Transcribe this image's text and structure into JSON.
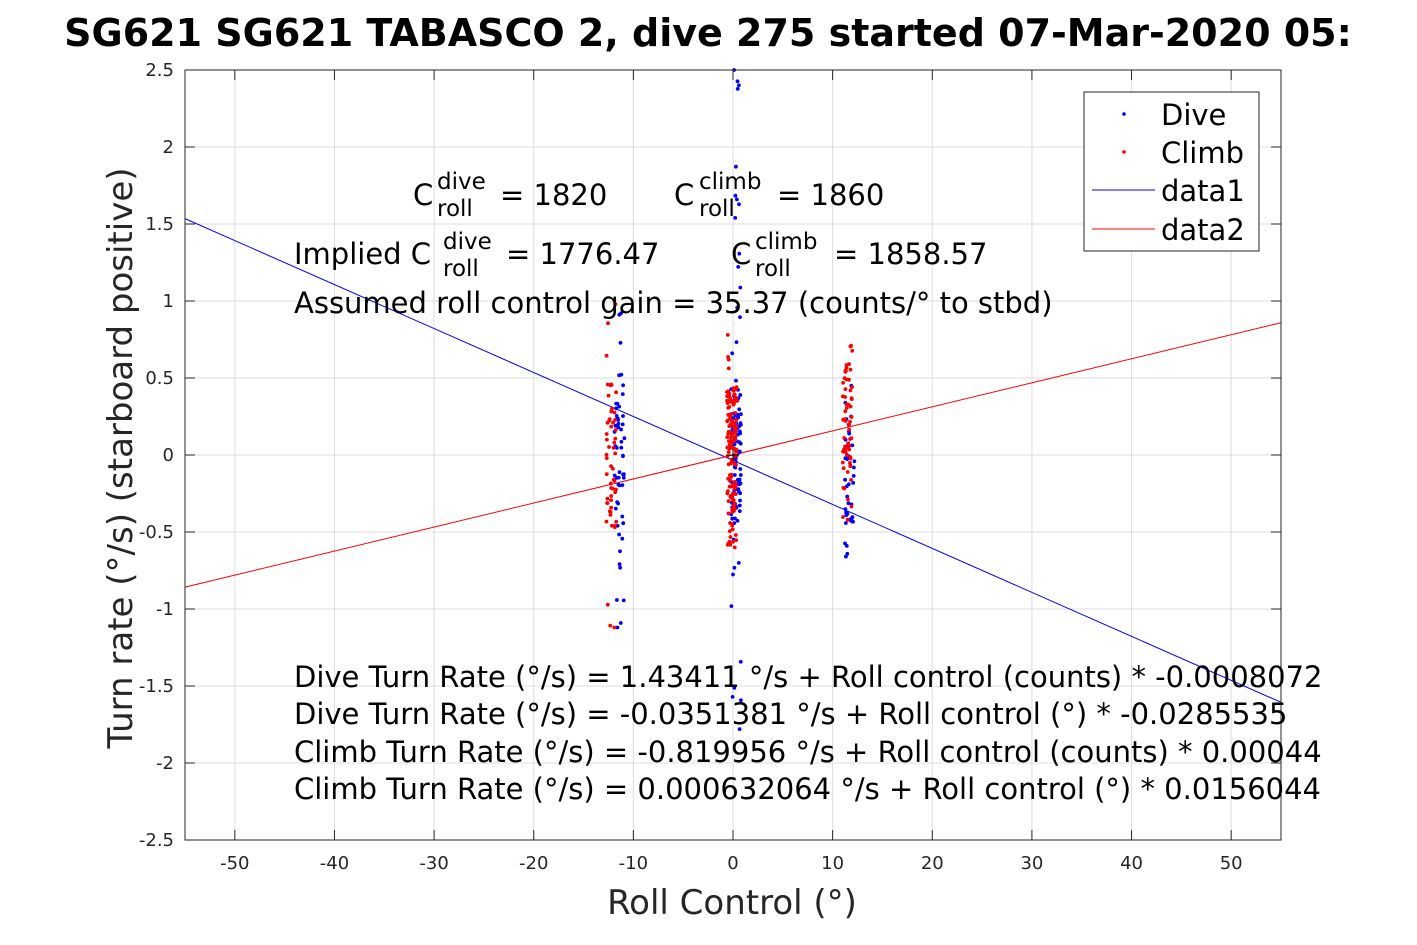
{
  "chart_data": {
    "type": "scatter",
    "title": "SG621 SG621 TABASCO 2, dive 275 started 07-Mar-2020 05:",
    "xlabel": "Roll Control (°)",
    "ylabel": "Turn rate (°/s) (starboard positive)",
    "xlim": [
      -55,
      55
    ],
    "ylim": [
      -2.5,
      2.5
    ],
    "xticks": [
      -50,
      -40,
      -30,
      -20,
      -10,
      0,
      10,
      20,
      30,
      40,
      50
    ],
    "yticks": [
      -2.5,
      -2,
      -1.5,
      -1,
      -0.5,
      0,
      0.5,
      1,
      1.5,
      2,
      2.5
    ],
    "grid": true,
    "legend_position": "top-right",
    "legend": [
      {
        "label": "Dive",
        "kind": "marker",
        "color": "#0000ff"
      },
      {
        "label": "Climb",
        "kind": "marker",
        "color": "#ff0000"
      },
      {
        "label": "data1",
        "kind": "line",
        "color": "#0000ff"
      },
      {
        "label": "data2",
        "kind": "line",
        "color": "#ff0000"
      }
    ],
    "series": [
      {
        "name": "Dive",
        "color": "#0000ff",
        "clusters": [
          {
            "x": -11.4,
            "y_min": -1.12,
            "y_max": 0.92,
            "dense_min": -0.65,
            "dense_max": 0.55,
            "count": 55
          },
          {
            "x": 0.3,
            "y_min": -1.78,
            "y_max": 2.5,
            "dense_min": -0.45,
            "dense_max": 0.45,
            "count": 110
          },
          {
            "x": 11.7,
            "y_min": -0.66,
            "y_max": 0.45,
            "dense_min": -0.45,
            "dense_max": 0.2,
            "count": 40
          }
        ]
      },
      {
        "name": "Climb",
        "color": "#ff0000",
        "clusters": [
          {
            "x": -12.2,
            "y_min": -1.12,
            "y_max": 0.98,
            "dense_min": -0.62,
            "dense_max": 0.5,
            "count": 55
          },
          {
            "x": -0.1,
            "y_min": -0.6,
            "y_max": 0.78,
            "dense_min": -0.45,
            "dense_max": 0.45,
            "count": 140
          },
          {
            "x": 11.5,
            "y_min": -0.42,
            "y_max": 0.71,
            "dense_min": -0.1,
            "dense_max": 0.6,
            "count": 60
          }
        ]
      },
      {
        "name": "data1",
        "color": "#0000ff",
        "line": {
          "x": [
            -55,
            55
          ],
          "y": [
            1.535,
            -1.606
          ]
        }
      },
      {
        "name": "data2",
        "color": "#ff0000",
        "line": {
          "x": [
            -55,
            55
          ],
          "y": [
            -0.858,
            0.859
          ]
        }
      }
    ],
    "annotations": {
      "c_roll": {
        "dive_base": "C",
        "dive_sup": "dive",
        "dive_sub": "roll",
        "dive_value": "= 1820",
        "climb_base": "C",
        "climb_sup": "climb",
        "climb_sub": "roll",
        "climb_value": "= 1860"
      },
      "implied": {
        "prefix": "Implied C",
        "dive_sup": "dive",
        "dive_sub": "roll",
        "dive_value": "= 1776.47",
        "climb_base": "C",
        "climb_sup": "climb",
        "climb_sub": "roll",
        "climb_value": "= 1858.57"
      },
      "gain": "Assumed roll control gain = 35.37 (counts/° to stbd)",
      "equations": [
        "Dive Turn Rate (°/s) = 1.43411 °/s + Roll control (counts) * -0.0008072",
        "Dive Turn Rate (°/s) = -0.0351381 °/s + Roll control (°) * -0.0285535",
        "Climb Turn Rate (°/s) = -0.819956 °/s + Roll control (counts) * 0.00044",
        "Climb Turn Rate (°/s) = 0.000632064 °/s + Roll control (°) * 0.0156044"
      ]
    }
  }
}
